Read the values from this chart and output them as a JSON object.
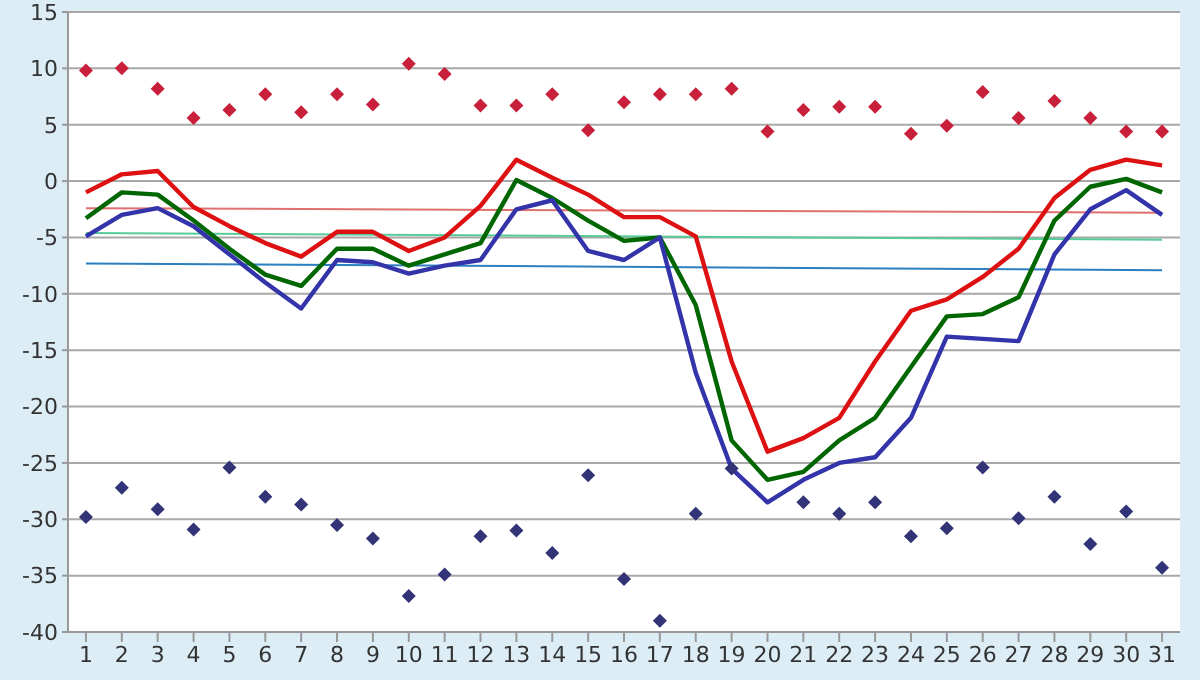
{
  "chart_data": {
    "type": "line",
    "x": [
      1,
      2,
      3,
      4,
      5,
      6,
      7,
      8,
      9,
      10,
      11,
      12,
      13,
      14,
      15,
      16,
      17,
      18,
      19,
      20,
      21,
      22,
      23,
      24,
      25,
      26,
      27,
      28,
      29,
      30,
      31
    ],
    "xlim": [
      0.5,
      31.5
    ],
    "xticks": [
      1,
      2,
      3,
      4,
      5,
      6,
      7,
      8,
      9,
      10,
      11,
      12,
      13,
      14,
      15,
      16,
      17,
      18,
      19,
      20,
      21,
      22,
      23,
      24,
      25,
      26,
      27,
      28,
      29,
      30,
      31
    ],
    "ylim": [
      -40,
      15
    ],
    "yticks": [
      -40,
      -35,
      -30,
      -25,
      -20,
      -15,
      -10,
      -5,
      0,
      5,
      10,
      15
    ],
    "grid": "y",
    "series": [
      {
        "color": "#e07070",
        "values": [
          -2.4,
          null,
          null,
          null,
          null,
          null,
          null,
          null,
          null,
          null,
          null,
          null,
          null,
          null,
          null,
          null,
          null,
          null,
          null,
          null,
          null,
          null,
          null,
          null,
          null,
          null,
          null,
          null,
          null,
          null,
          -2.8
        ]
      },
      {
        "color": "#55cc99",
        "values": [
          -4.6,
          null,
          null,
          null,
          null,
          null,
          null,
          null,
          null,
          null,
          null,
          null,
          null,
          null,
          null,
          null,
          null,
          null,
          null,
          null,
          null,
          null,
          null,
          null,
          null,
          null,
          null,
          null,
          null,
          null,
          -5.2
        ]
      },
      {
        "color": "#2a7fc0",
        "values": [
          -7.3,
          null,
          null,
          null,
          null,
          null,
          null,
          null,
          null,
          null,
          null,
          null,
          null,
          null,
          null,
          null,
          null,
          null,
          null,
          null,
          null,
          null,
          null,
          null,
          null,
          null,
          null,
          null,
          null,
          null,
          -7.9
        ]
      },
      {
        "color": "#dd1111",
        "values": [
          -1,
          0.6,
          0.9,
          -2.3,
          -4,
          -5.5,
          -6.7,
          -4.5,
          -4.5,
          -6.2,
          -5,
          -2.2,
          1.9,
          0.3,
          -1.2,
          -3.2,
          -3.2,
          -4.9,
          -16,
          -24,
          -22.8,
          -21,
          -16,
          -11.5,
          -10.5,
          -8.5,
          -6,
          -1.5,
          1,
          1.9,
          1.4
        ]
      },
      {
        "color": "#006600",
        "values": [
          -3.3,
          -1,
          -1.2,
          -3.5,
          -6,
          -8.3,
          -9.3,
          -6,
          -6,
          -7.5,
          -6.5,
          -5.5,
          0.1,
          -1.5,
          -3.5,
          -5.3,
          -5,
          -11,
          -23,
          -26.5,
          -25.8,
          -23,
          -21,
          -16.5,
          -12,
          -11.8,
          -10.3,
          -3.5,
          -0.5,
          0.2,
          -1
        ]
      },
      {
        "color": "#3333aa",
        "values": [
          -4.9,
          -3,
          -2.4,
          -4,
          -6.5,
          -9,
          -11.3,
          -7,
          -7.2,
          -8.2,
          -7.5,
          -7,
          -2.5,
          -1.7,
          -6.2,
          -7,
          -5,
          -17,
          -25.5,
          -28.5,
          -26.5,
          -25,
          -24.5,
          -21,
          -13.8,
          -14,
          -14.2,
          -6.5,
          -2.5,
          -0.8,
          -3
        ]
      },
      {
        "type": "scatter",
        "marker": "diamond",
        "color": "#c8203a",
        "values": [
          9.8,
          10,
          8.2,
          5.6,
          6.3,
          7.7,
          6.1,
          7.7,
          6.8,
          10.4,
          9.5,
          6.7,
          6.7,
          7.7,
          4.5,
          7,
          7.7,
          7.7,
          8.2,
          4.4,
          6.3,
          6.6,
          6.6,
          4.2,
          4.9,
          7.9,
          5.6,
          7.1,
          5.6,
          4.4,
          4.4
        ]
      },
      {
        "type": "scatter",
        "marker": "diamond",
        "color": "#333377",
        "values": [
          -29.8,
          -27.2,
          -29.1,
          -30.9,
          -25.4,
          -28,
          -28.7,
          -30.5,
          -31.7,
          -36.8,
          -34.9,
          -31.5,
          -31,
          -33,
          -26.1,
          -35.3,
          -39,
          -29.5,
          -25.5,
          null,
          -28.5,
          -29.5,
          -28.5,
          -31.5,
          -30.8,
          -25.4,
          -29.9,
          -28,
          -32.2,
          -29.3,
          -34.3
        ]
      }
    ]
  }
}
